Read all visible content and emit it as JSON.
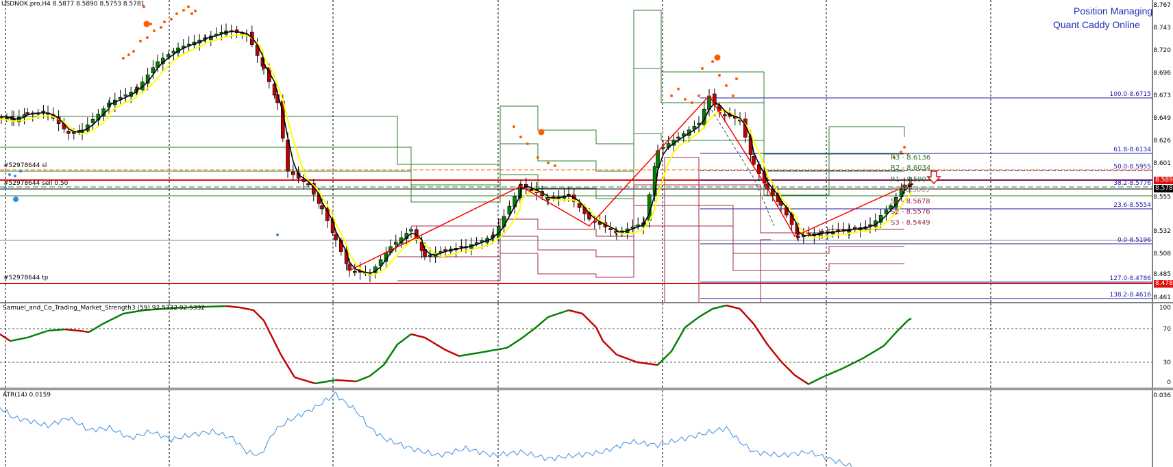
{
  "chart": {
    "symbol_header": "USDNOK.pro,H4  8.5877 8.5890 8.5753 8.5781",
    "brand_line1": "Position Managing",
    "brand_line2": "Quant Caddy Online",
    "price_axis": [
      "8.767",
      "8.743",
      "8.720",
      "8.696",
      "8.673",
      "8.649",
      "8.626",
      "8.601",
      "8.579",
      "8.555",
      "8.532",
      "8.508",
      "8.485",
      "8.461"
    ],
    "current_price_tag": "8.578",
    "sell_price_tag": "8.589",
    "tp_price_tag": "8.478",
    "trade_labels": {
      "sl": "#52978644 sl",
      "sell": "#52978644 sell 0.50",
      "tp": "#52978644 tp"
    },
    "fibonacci": [
      "100.0-8.6715",
      "61.8-8.6134",
      "50.0-8.5955",
      "38.2-8.5776",
      "23.6-8.5554",
      "0.0-8.5196",
      "127.0-8.4786",
      "138.2-8.4616"
    ],
    "pivots": {
      "r3": "R3 - 8.6136",
      "r2": "R2 - 8.6034",
      "r1": "R1 - 8.5907",
      "pp": "PP - 8.5805",
      "s1": "S1 - 8.5678",
      "s2": "S2 - 8.5576",
      "s3": "S3 - 8.5449"
    }
  },
  "indicator1": {
    "label": "Samuel_and_Co_Trading_Market_Strength3 (59) 92.5332 92.5332",
    "axis": [
      "100",
      "70",
      "30",
      "0"
    ]
  },
  "indicator2": {
    "label": "ATR(14) 0.0159",
    "axis": [
      "0.036"
    ]
  },
  "colors": {
    "bull": "#008000",
    "bear": "#c00000",
    "trade_line": "#ff0000",
    "fib": "#1a1aa6",
    "atr": "#3a8ee0",
    "ma_fast": "#000000",
    "ma_slow": "#ffff00",
    "dots": "#ff5a00"
  }
}
